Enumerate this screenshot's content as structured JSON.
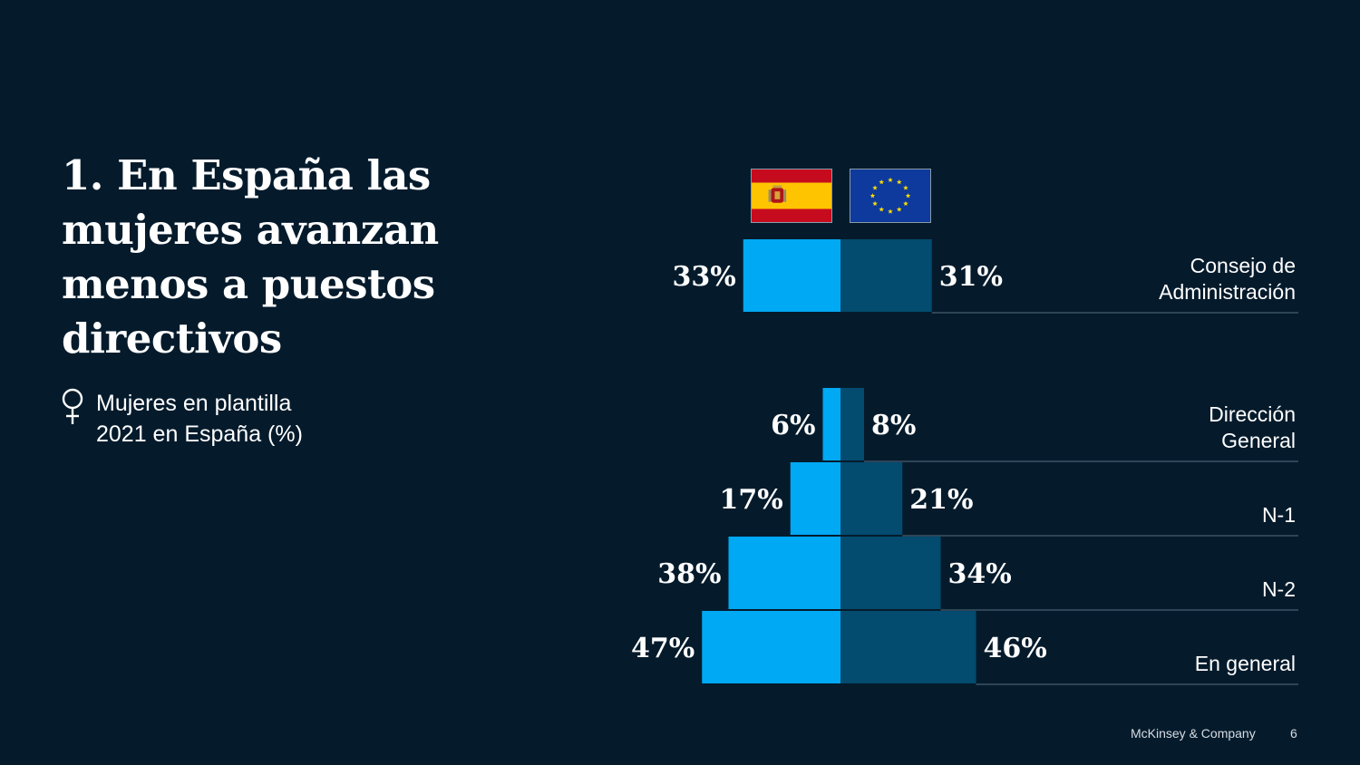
{
  "title": "1. En España las mujeres avanzan menos a puestos directivos",
  "subtitle": {
    "icon": "venus-icon",
    "lines": [
      "Mujeres en plantilla",
      "2021 en España (%)"
    ]
  },
  "flags": [
    {
      "name": "spain-flag",
      "label": "España"
    },
    {
      "name": "eu-flag",
      "label": "UE"
    }
  ],
  "colors": {
    "background": "#051b2c",
    "spain": "#00a9f4",
    "eu": "#034b6f",
    "separator": "#2e4557"
  },
  "chart_data": {
    "type": "bar",
    "orientation": "horizontal-diverging",
    "title": "Mujeres en plantilla 2021 en España (%)",
    "categories": [
      "Consejo de Administración",
      "Dirección General",
      "N-1",
      "N-2",
      "En general"
    ],
    "category_lines": [
      [
        "Consejo de",
        "Administración"
      ],
      [
        "Dirección",
        "General"
      ],
      [
        "N-1"
      ],
      [
        "N-2"
      ],
      [
        "En general"
      ]
    ],
    "series": [
      {
        "name": "España",
        "side": "left",
        "values": [
          33,
          6,
          17,
          38,
          47
        ],
        "labels": [
          "33%",
          "6%",
          "17%",
          "38%",
          "47%"
        ]
      },
      {
        "name": "Unión Europea",
        "side": "right",
        "values": [
          31,
          8,
          21,
          34,
          46
        ],
        "labels": [
          "31%",
          "8%",
          "21%",
          "34%",
          "46%"
        ]
      }
    ],
    "unit": "%",
    "xlabel": "",
    "ylabel": "",
    "grid": false,
    "legend": "top (flags)"
  },
  "footer": {
    "brand": "McKinsey & Company",
    "page": "6"
  }
}
